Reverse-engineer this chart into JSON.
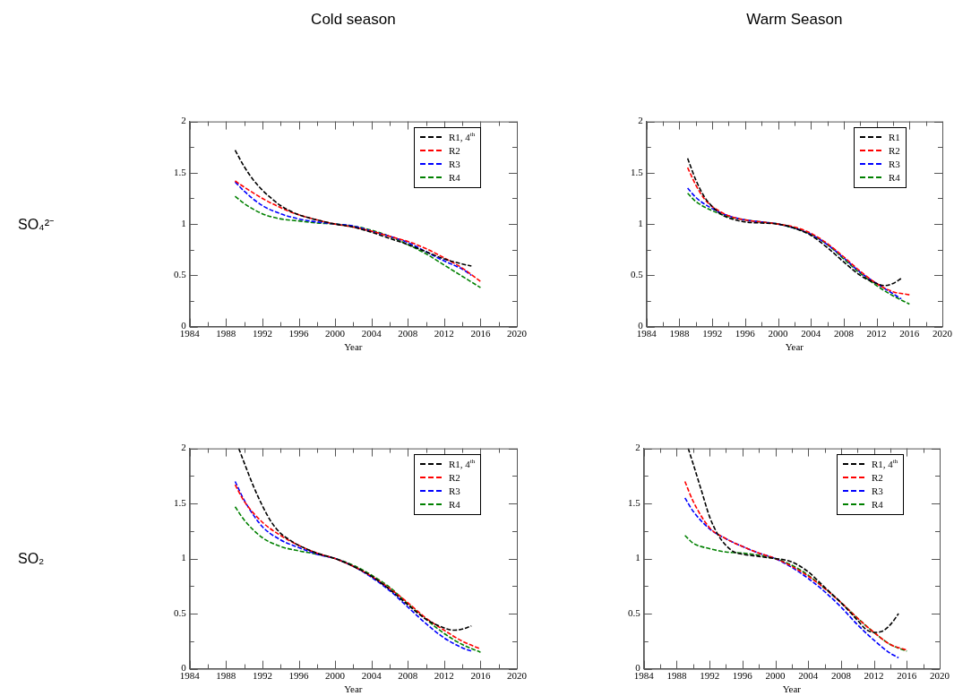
{
  "chart_data": [
    {
      "type": "line",
      "title": "Cold season",
      "ylabel": "SO₄²⁻",
      "xlabel": "Year",
      "xlim": [
        1984,
        2020
      ],
      "ylim": [
        0,
        2
      ],
      "xticks": [
        1984,
        {
          "value": 1986,
          "label": null
        },
        1988,
        {
          "value": 1990,
          "label": null
        },
        1992,
        {
          "value": 1994,
          "label": null
        },
        1996,
        {
          "value": 1998,
          "label": null
        },
        2000,
        {
          "value": 2002,
          "label": null
        },
        2004,
        {
          "value": 2006,
          "label": null
        },
        2008,
        {
          "value": 2010,
          "label": null
        },
        2012,
        {
          "value": 2014,
          "label": null
        },
        2016,
        {
          "value": 2018,
          "label": null
        },
        2020
      ],
      "yticks": [
        0,
        {
          "value": 0.25,
          "label": null
        },
        0.5,
        {
          "value": 0.75,
          "label": null
        },
        1,
        {
          "value": 1.25,
          "label": null
        },
        1.5,
        {
          "value": 1.75,
          "label": null
        },
        2
      ],
      "legend": "top right",
      "line_style": "dashed",
      "marker": "none",
      "grid": false,
      "series": [
        {
          "name": "R1, 4$^{th}$",
          "color": "#000000",
          "x": [
            1989,
            1990,
            1991,
            1992,
            1993,
            1994,
            1995,
            1996,
            1998,
            2000,
            2002,
            2004,
            2006,
            2008,
            2010,
            2012,
            2014,
            2015
          ],
          "values": [
            1.72,
            1.56,
            1.43,
            1.33,
            1.25,
            1.18,
            1.13,
            1.09,
            1.04,
            1.0,
            0.97,
            0.92,
            0.86,
            0.8,
            0.73,
            0.66,
            0.61,
            0.59
          ]
        },
        {
          "name": "R2",
          "color": "#ff0000",
          "x": [
            1989,
            1990,
            1992,
            1994,
            1996,
            1998,
            2000,
            2002,
            2004,
            2006,
            2008,
            2010,
            2012,
            2014,
            2016
          ],
          "values": [
            1.42,
            1.36,
            1.25,
            1.16,
            1.09,
            1.04,
            1.0,
            0.97,
            0.93,
            0.88,
            0.83,
            0.76,
            0.67,
            0.57,
            0.44
          ]
        },
        {
          "name": "R3",
          "color": "#0000ff",
          "x": [
            1989,
            1990,
            1992,
            1994,
            1996,
            1998,
            2000,
            2002,
            2004,
            2006,
            2008,
            2010,
            2012,
            2014,
            2015
          ],
          "values": [
            1.41,
            1.32,
            1.18,
            1.1,
            1.05,
            1.02,
            1.0,
            0.98,
            0.93,
            0.88,
            0.82,
            0.73,
            0.64,
            0.56,
            0.5
          ]
        },
        {
          "name": "R4",
          "color": "#008000",
          "x": [
            1989,
            1990,
            1992,
            1994,
            1996,
            1998,
            2000,
            2002,
            2004,
            2006,
            2008,
            2010,
            2012,
            2014,
            2016
          ],
          "values": [
            1.27,
            1.2,
            1.1,
            1.05,
            1.03,
            1.01,
            1.0,
            0.98,
            0.94,
            0.88,
            0.8,
            0.71,
            0.6,
            0.49,
            0.38
          ]
        }
      ]
    },
    {
      "type": "line",
      "title": "Warm Season",
      "xlabel": "Year",
      "xlim": [
        1984,
        2020
      ],
      "ylim": [
        0,
        2
      ],
      "xticks": [
        1984,
        {
          "value": 1986,
          "label": null
        },
        1988,
        {
          "value": 1990,
          "label": null
        },
        1992,
        {
          "value": 1994,
          "label": null
        },
        1996,
        {
          "value": 1998,
          "label": null
        },
        2000,
        {
          "value": 2002,
          "label": null
        },
        2004,
        {
          "value": 2006,
          "label": null
        },
        2008,
        {
          "value": 2010,
          "label": null
        },
        2012,
        {
          "value": 2014,
          "label": null
        },
        2016,
        {
          "value": 2018,
          "label": null
        },
        2020
      ],
      "yticks": [
        0,
        {
          "value": 0.25,
          "label": null
        },
        0.5,
        {
          "value": 0.75,
          "label": null
        },
        1,
        {
          "value": 1.25,
          "label": null
        },
        1.5,
        {
          "value": 1.75,
          "label": null
        },
        2
      ],
      "legend": "top right",
      "line_style": "dashed",
      "marker": "none",
      "grid": false,
      "series": [
        {
          "name": "R1",
          "color": "#000000",
          "x": [
            1989,
            1990,
            1991,
            1992,
            1993,
            1994,
            1996,
            1998,
            2000,
            2002,
            2004,
            2006,
            2008,
            2010,
            2012,
            2013,
            2014,
            2015
          ],
          "values": [
            1.64,
            1.43,
            1.27,
            1.17,
            1.1,
            1.06,
            1.02,
            1.01,
            1.0,
            0.96,
            0.89,
            0.77,
            0.63,
            0.5,
            0.42,
            0.4,
            0.42,
            0.47
          ]
        },
        {
          "name": "R2",
          "color": "#ff0000",
          "x": [
            1989,
            1990,
            1991,
            1992,
            1993,
            1994,
            1996,
            1998,
            2000,
            2002,
            2004,
            2006,
            2008,
            2010,
            2012,
            2014,
            2016
          ],
          "values": [
            1.55,
            1.38,
            1.25,
            1.17,
            1.12,
            1.08,
            1.04,
            1.02,
            1.0,
            0.97,
            0.91,
            0.81,
            0.68,
            0.54,
            0.42,
            0.34,
            0.31
          ]
        },
        {
          "name": "R3",
          "color": "#0000ff",
          "x": [
            1989,
            1990,
            1992,
            1994,
            1996,
            1998,
            2000,
            2002,
            2004,
            2006,
            2008,
            2010,
            2012,
            2014,
            2015
          ],
          "values": [
            1.35,
            1.26,
            1.15,
            1.08,
            1.04,
            1.02,
            1.0,
            0.96,
            0.9,
            0.8,
            0.67,
            0.53,
            0.42,
            0.32,
            0.27
          ]
        },
        {
          "name": "R4",
          "color": "#008000",
          "x": [
            1989,
            1990,
            1992,
            1994,
            1996,
            1998,
            2000,
            2002,
            2004,
            2006,
            2008,
            2010,
            2012,
            2014,
            2016
          ],
          "values": [
            1.3,
            1.22,
            1.13,
            1.07,
            1.04,
            1.02,
            1.0,
            0.96,
            0.9,
            0.8,
            0.66,
            0.52,
            0.4,
            0.3,
            0.22
          ]
        }
      ]
    },
    {
      "type": "line",
      "ylabel": "SO₂",
      "xlabel": "Year",
      "xlim": [
        1984,
        2020
      ],
      "ylim": [
        0,
        2
      ],
      "xticks": [
        1984,
        {
          "value": 1986,
          "label": null
        },
        1988,
        {
          "value": 1990,
          "label": null
        },
        1992,
        {
          "value": 1994,
          "label": null
        },
        1996,
        {
          "value": 1998,
          "label": null
        },
        2000,
        {
          "value": 2002,
          "label": null
        },
        2004,
        {
          "value": 2006,
          "label": null
        },
        2008,
        {
          "value": 2010,
          "label": null
        },
        2012,
        {
          "value": 2014,
          "label": null
        },
        2016,
        {
          "value": 2018,
          "label": null
        },
        2020
      ],
      "yticks": [
        0,
        {
          "value": 0.25,
          "label": null
        },
        0.5,
        {
          "value": 0.75,
          "label": null
        },
        1,
        {
          "value": 1.25,
          "label": null
        },
        1.5,
        {
          "value": 1.75,
          "label": null
        },
        2
      ],
      "legend": "top right",
      "line_style": "dashed",
      "marker": "none",
      "grid": false,
      "series": [
        {
          "name": "R1, 4$^{th}$",
          "color": "#000000",
          "x": [
            1989.4,
            1990,
            1991,
            1992,
            1993,
            1994,
            1995,
            1996,
            1998,
            2000,
            2002,
            2004,
            2006,
            2008,
            2010,
            2012,
            2013,
            2014,
            2015
          ],
          "values": [
            2.0,
            1.87,
            1.66,
            1.48,
            1.33,
            1.23,
            1.17,
            1.12,
            1.05,
            1.0,
            0.93,
            0.84,
            0.72,
            0.58,
            0.45,
            0.37,
            0.35,
            0.36,
            0.39
          ]
        },
        {
          "name": "R2",
          "color": "#ff0000",
          "x": [
            1989,
            1990,
            1992,
            1994,
            1996,
            1998,
            2000,
            2002,
            2004,
            2006,
            2008,
            2010,
            2012,
            2014,
            2016
          ],
          "values": [
            1.67,
            1.52,
            1.33,
            1.21,
            1.12,
            1.05,
            1.0,
            0.93,
            0.84,
            0.73,
            0.6,
            0.46,
            0.35,
            0.25,
            0.18
          ]
        },
        {
          "name": "R3",
          "color": "#0000ff",
          "x": [
            1989,
            1990,
            1992,
            1994,
            1996,
            1998,
            2000,
            2002,
            2004,
            2006,
            2008,
            2010,
            2012,
            2014,
            2015
          ],
          "values": [
            1.7,
            1.53,
            1.29,
            1.17,
            1.1,
            1.04,
            1.0,
            0.93,
            0.83,
            0.71,
            0.56,
            0.41,
            0.28,
            0.19,
            0.16
          ]
        },
        {
          "name": "R4",
          "color": "#008000",
          "x": [
            1989,
            1990,
            1992,
            1994,
            1996,
            1998,
            2000,
            2002,
            2004,
            2006,
            2008,
            2010,
            2012,
            2014,
            2016
          ],
          "values": [
            1.47,
            1.35,
            1.19,
            1.11,
            1.07,
            1.04,
            1.0,
            0.94,
            0.85,
            0.74,
            0.59,
            0.45,
            0.32,
            0.22,
            0.15
          ]
        }
      ]
    },
    {
      "type": "line",
      "xlabel": "Year",
      "xlim": [
        1984,
        2020
      ],
      "ylim": [
        0,
        2
      ],
      "xticks": [
        1984,
        {
          "value": 1986,
          "label": null
        },
        1988,
        {
          "value": 1990,
          "label": null
        },
        1992,
        {
          "value": 1994,
          "label": null
        },
        1996,
        {
          "value": 1998,
          "label": null
        },
        2000,
        {
          "value": 2002,
          "label": null
        },
        2004,
        {
          "value": 2006,
          "label": null
        },
        2008,
        {
          "value": 2010,
          "label": null
        },
        2012,
        {
          "value": 2014,
          "label": null
        },
        2016,
        {
          "value": 2018,
          "label": null
        },
        2020
      ],
      "yticks": [
        0,
        {
          "value": 0.25,
          "label": null
        },
        0.5,
        {
          "value": 0.75,
          "label": null
        },
        1,
        {
          "value": 1.25,
          "label": null
        },
        1.5,
        {
          "value": 1.75,
          "label": null
        },
        2
      ],
      "legend": "top right",
      "line_style": "dashed",
      "marker": "none",
      "grid": false,
      "series": [
        {
          "name": "R1, 4$^{th}$",
          "color": "#000000",
          "x": [
            1989.4,
            1990,
            1991,
            1992,
            1993,
            1994,
            1995,
            1996,
            1998,
            2000,
            2001,
            2002,
            2004,
            2006,
            2008,
            2010,
            2011,
            2012,
            2013,
            2014,
            2015
          ],
          "values": [
            2.0,
            1.86,
            1.62,
            1.38,
            1.22,
            1.12,
            1.06,
            1.04,
            1.02,
            1.0,
            0.99,
            0.97,
            0.88,
            0.74,
            0.6,
            0.44,
            0.36,
            0.33,
            0.34,
            0.4,
            0.5
          ]
        },
        {
          "name": "R2",
          "color": "#ff0000",
          "x": [
            1989,
            1990,
            1992,
            1994,
            1996,
            1998,
            2000,
            2002,
            2004,
            2006,
            2008,
            2010,
            2012,
            2014,
            2016
          ],
          "values": [
            1.7,
            1.52,
            1.28,
            1.18,
            1.11,
            1.05,
            1.0,
            0.93,
            0.84,
            0.73,
            0.6,
            0.46,
            0.33,
            0.22,
            0.17
          ]
        },
        {
          "name": "R3",
          "color": "#0000ff",
          "x": [
            1989,
            1990,
            1992,
            1994,
            1996,
            1998,
            2000,
            2002,
            2004,
            2006,
            2008,
            2010,
            2012,
            2014,
            2015
          ],
          "values": [
            1.55,
            1.43,
            1.27,
            1.18,
            1.11,
            1.05,
            1.0,
            0.92,
            0.82,
            0.7,
            0.56,
            0.4,
            0.26,
            0.14,
            0.1
          ]
        },
        {
          "name": "R4",
          "color": "#008000",
          "x": [
            1989,
            1990,
            1992,
            1994,
            1996,
            1998,
            2000,
            2002,
            2004,
            2006,
            2008,
            2010,
            2012,
            2014,
            2016
          ],
          "values": [
            1.21,
            1.14,
            1.09,
            1.06,
            1.05,
            1.03,
            1.0,
            0.94,
            0.85,
            0.73,
            0.6,
            0.46,
            0.33,
            0.22,
            0.16
          ]
        }
      ]
    }
  ]
}
